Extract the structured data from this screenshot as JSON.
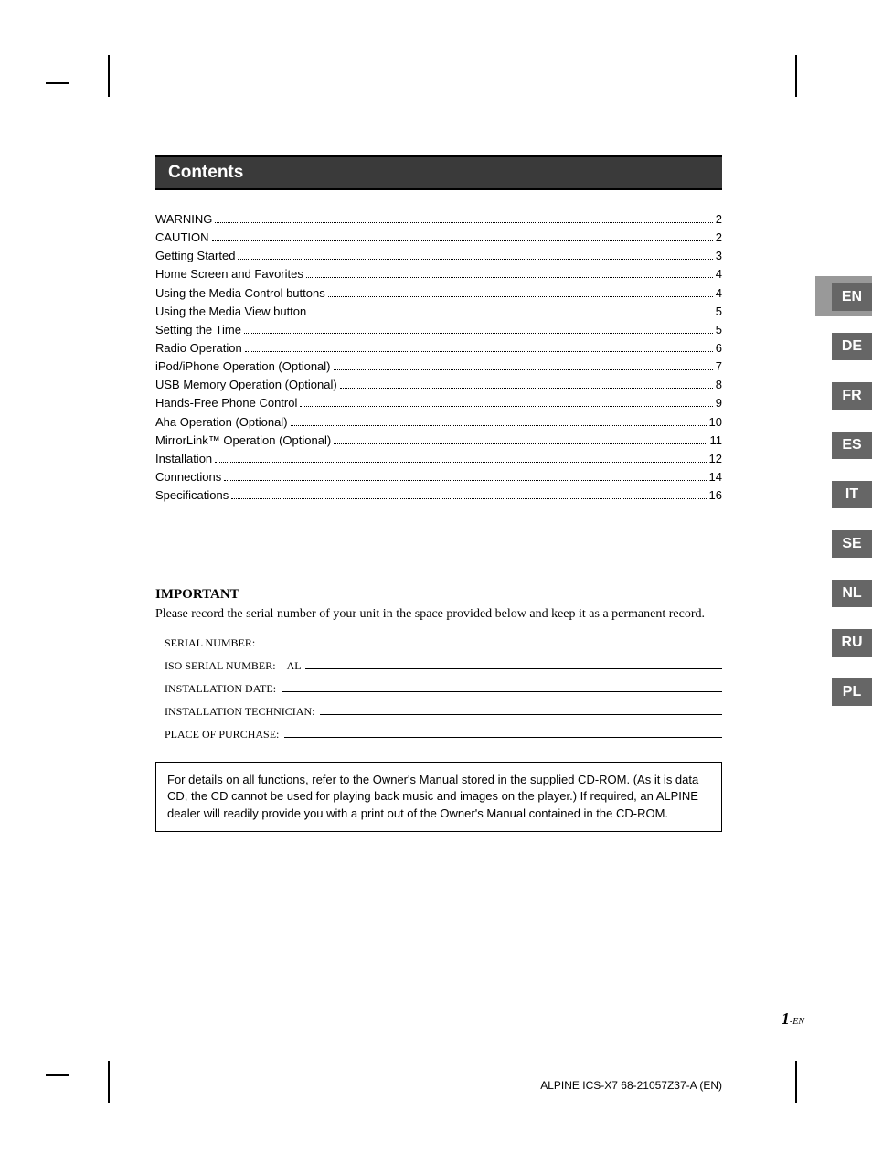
{
  "colors": {
    "header_bg": "#3a3a3a",
    "header_text": "#ffffff",
    "header_border": "#000000",
    "lang_tab_bg": "#666666",
    "lang_tab_text": "#ffffff",
    "lang_active_bg": "#999999",
    "text": "#000000",
    "page_bg": "#ffffff"
  },
  "header": {
    "title": "Contents"
  },
  "toc": [
    {
      "title": "WARNING",
      "page": "2"
    },
    {
      "title": "CAUTION",
      "page": "2"
    },
    {
      "title": "Getting Started",
      "page": "3"
    },
    {
      "title": "Home Screen and Favorites",
      "page": "4"
    },
    {
      "title": "Using the Media Control buttons",
      "page": "4"
    },
    {
      "title": "Using the Media View button",
      "page": "5"
    },
    {
      "title": "Setting the Time",
      "page": "5"
    },
    {
      "title": "Radio Operation",
      "page": "6"
    },
    {
      "title": "iPod/iPhone Operation (Optional)",
      "page": "7"
    },
    {
      "title": "USB Memory Operation (Optional)",
      "page": "8"
    },
    {
      "title": "Hands-Free Phone Control",
      "page": "9"
    },
    {
      "title": "Aha Operation (Optional)",
      "page": "10"
    },
    {
      "title": "MirrorLink™ Operation (Optional)",
      "page": "11"
    },
    {
      "title": "Installation",
      "page": "12"
    },
    {
      "title": "Connections",
      "page": "14"
    },
    {
      "title": "Specifications",
      "page": "16"
    }
  ],
  "important": {
    "heading": "IMPORTANT",
    "text": "Please record the serial number of your unit in the space provided below and keep it as a permanent record.",
    "fields": [
      {
        "label": "SERIAL NUMBER:",
        "prefix": ""
      },
      {
        "label": "ISO SERIAL NUMBER:",
        "prefix": "AL"
      },
      {
        "label": "INSTALLATION DATE:",
        "prefix": ""
      },
      {
        "label": "INSTALLATION TECHNICIAN:",
        "prefix": ""
      },
      {
        "label": "PLACE OF PURCHASE:",
        "prefix": ""
      }
    ]
  },
  "note": "For details on all functions, refer to the Owner's Manual stored in the supplied CD-ROM. (As it is data CD, the CD cannot be used for playing back music and images on the player.) If required, an ALPINE dealer will readily provide you with a print out of the Owner's Manual contained in the CD-ROM.",
  "lang_tabs": [
    "EN",
    "DE",
    "FR",
    "ES",
    "IT",
    "SE",
    "NL",
    "RU",
    "PL"
  ],
  "lang_active_index": 0,
  "page_number": {
    "num": "1",
    "suffix": "-EN"
  },
  "footer": "ALPINE ICS-X7 68-21057Z37-A (EN)"
}
